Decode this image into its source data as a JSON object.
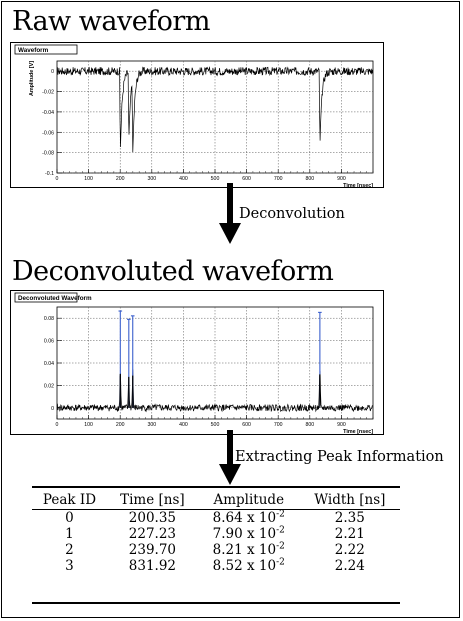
{
  "headings": {
    "raw": "Raw waveform",
    "deconvoluted": "Deconvoluted waveform"
  },
  "steps": {
    "deconvolution": "Deconvolution",
    "extraction": "Extracting Peak Information"
  },
  "colors": {
    "trace": "#000000",
    "deconv_peaks": "#3a5fcd",
    "grid": "#555555"
  },
  "chart_data": [
    {
      "type": "line",
      "title": "Waveform",
      "xlabel": "Time [nsec]",
      "ylabel": "Amplitude [V]",
      "xlim": [
        0,
        1000
      ],
      "ylim": [
        -0.1,
        0.01
      ],
      "xticks": [
        "0",
        "100",
        "200",
        "300",
        "400",
        "500",
        "600",
        "700",
        "800",
        "900"
      ],
      "yticks": [
        "0",
        "-0.02",
        "-0.04",
        "-0.06",
        "-0.08",
        "-0.1"
      ],
      "grid": true,
      "baseline": 0.0,
      "noise_amplitude": 0.004,
      "pulses": [
        {
          "time": 200.35,
          "depth": -0.082
        },
        {
          "time": 227.23,
          "depth": -0.072
        },
        {
          "time": 239.7,
          "depth": -0.078
        },
        {
          "time": 831.92,
          "depth": -0.078
        }
      ]
    },
    {
      "type": "line",
      "title": "Deconvoluted Waveform",
      "xlabel": "Time [nsec]",
      "ylabel": "",
      "xlim": [
        0,
        1000
      ],
      "ylim": [
        -0.01,
        0.09
      ],
      "xticks": [
        "0",
        "100",
        "200",
        "300",
        "400",
        "500",
        "600",
        "700",
        "800",
        "900"
      ],
      "yticks": [
        "0.08",
        "0.06",
        "0.04",
        "0.02",
        "0"
      ],
      "grid": true,
      "baseline": 0.0,
      "noise_amplitude": 0.003,
      "peaks": [
        {
          "time": 200.35,
          "amplitude": 0.0864
        },
        {
          "time": 227.23,
          "amplitude": 0.079
        },
        {
          "time": 239.7,
          "amplitude": 0.0821
        },
        {
          "time": 831.92,
          "amplitude": 0.0852
        }
      ]
    }
  ],
  "table": {
    "headers": [
      "Peak ID",
      "Time [ns]",
      "Amplitude",
      "Width [ns]"
    ],
    "rows": [
      {
        "id": "0",
        "time": "200.35",
        "amp_mantissa": "8.64 x 10",
        "amp_exp": "-2",
        "width": "2.35"
      },
      {
        "id": "1",
        "time": "227.23",
        "amp_mantissa": "7.90 x 10",
        "amp_exp": "-2",
        "width": "2.21"
      },
      {
        "id": "2",
        "time": "239.70",
        "amp_mantissa": "8.21 x 10",
        "amp_exp": "-2",
        "width": "2.22"
      },
      {
        "id": "3",
        "time": "831.92",
        "amp_mantissa": "8.52 x 10",
        "amp_exp": "-2",
        "width": "2.24"
      }
    ]
  }
}
